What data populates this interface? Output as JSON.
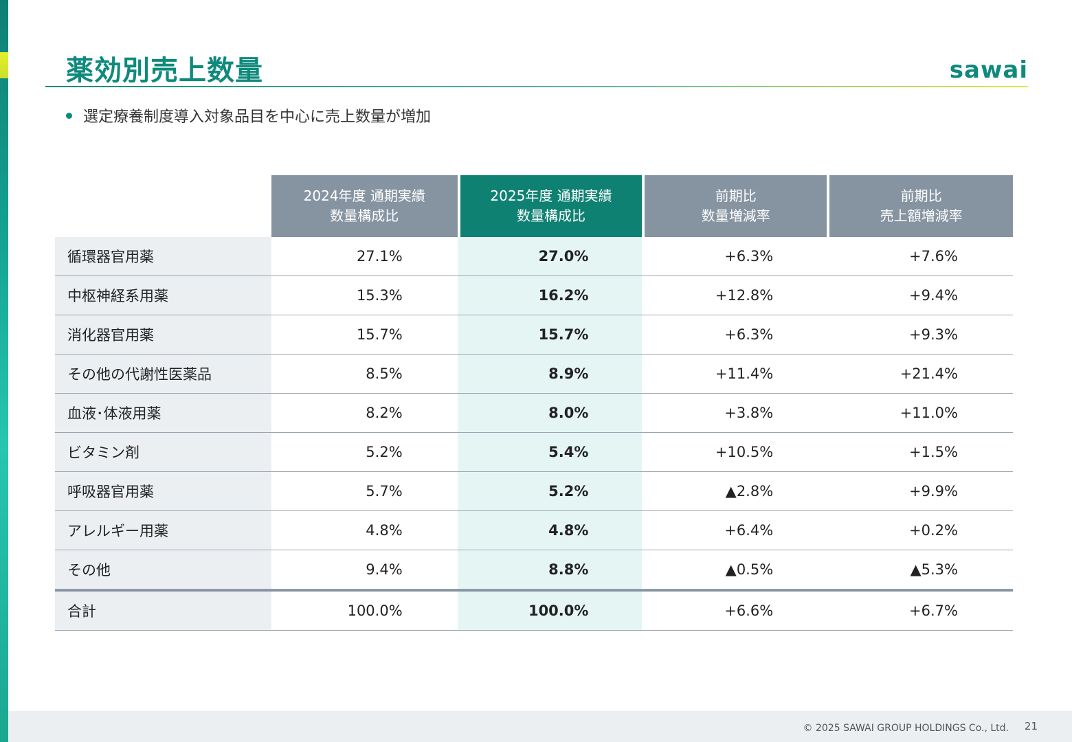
{
  "header": {
    "title": "薬効別売上数量",
    "logo": "sawai"
  },
  "bullet": "選定療養制度導入対象品目を中心に売上数量が増加",
  "table": {
    "columns": [
      {
        "line1": "2024年度 通期実績",
        "line2": "数量構成比"
      },
      {
        "line1": "2025年度 通期実績",
        "line2": "数量構成比"
      },
      {
        "line1": "前期比",
        "line2": "数量増減率"
      },
      {
        "line1": "前期比",
        "line2": "売上額増減率"
      }
    ],
    "rows": [
      {
        "label": "循環器官用薬",
        "v2024": "27.1%",
        "v2025": "27.0%",
        "qty": "+6.3%",
        "sales": "+7.6%"
      },
      {
        "label": "中枢神経系用薬",
        "v2024": "15.3%",
        "v2025": "16.2%",
        "qty": "+12.8%",
        "sales": "+9.4%"
      },
      {
        "label": "消化器官用薬",
        "v2024": "15.7%",
        "v2025": "15.7%",
        "qty": "+6.3%",
        "sales": "+9.3%"
      },
      {
        "label": "その他の代謝性医薬品",
        "v2024": "8.5%",
        "v2025": "8.9%",
        "qty": "+11.4%",
        "sales": "+21.4%"
      },
      {
        "label": "血液･体液用薬",
        "v2024": "8.2%",
        "v2025": "8.0%",
        "qty": "+3.8%",
        "sales": "+11.0%"
      },
      {
        "label": "ビタミン剤",
        "v2024": "5.2%",
        "v2025": "5.4%",
        "qty": "+10.5%",
        "sales": "+1.5%"
      },
      {
        "label": "呼吸器官用薬",
        "v2024": "5.7%",
        "v2025": "5.2%",
        "qty": "▲2.8%",
        "sales": "+9.9%"
      },
      {
        "label": "アレルギー用薬",
        "v2024": "4.8%",
        "v2025": "4.8%",
        "qty": "+6.4%",
        "sales": "+0.2%"
      },
      {
        "label": "その他",
        "v2024": "9.4%",
        "v2025": "8.8%",
        "qty": "▲0.5%",
        "sales": "▲5.3%"
      }
    ],
    "total": {
      "label": "合計",
      "v2024": "100.0%",
      "v2025": "100.0%",
      "qty": "+6.6%",
      "sales": "+6.7%"
    }
  },
  "footer": {
    "copyright": "© 2025 SAWAI GROUP HOLDINGS Co., Ltd.",
    "page": "21"
  },
  "colors": {
    "brand_green": "#0f8a7c",
    "header_gray": "#8694a2",
    "highlight_column": "#e5f5f4"
  }
}
